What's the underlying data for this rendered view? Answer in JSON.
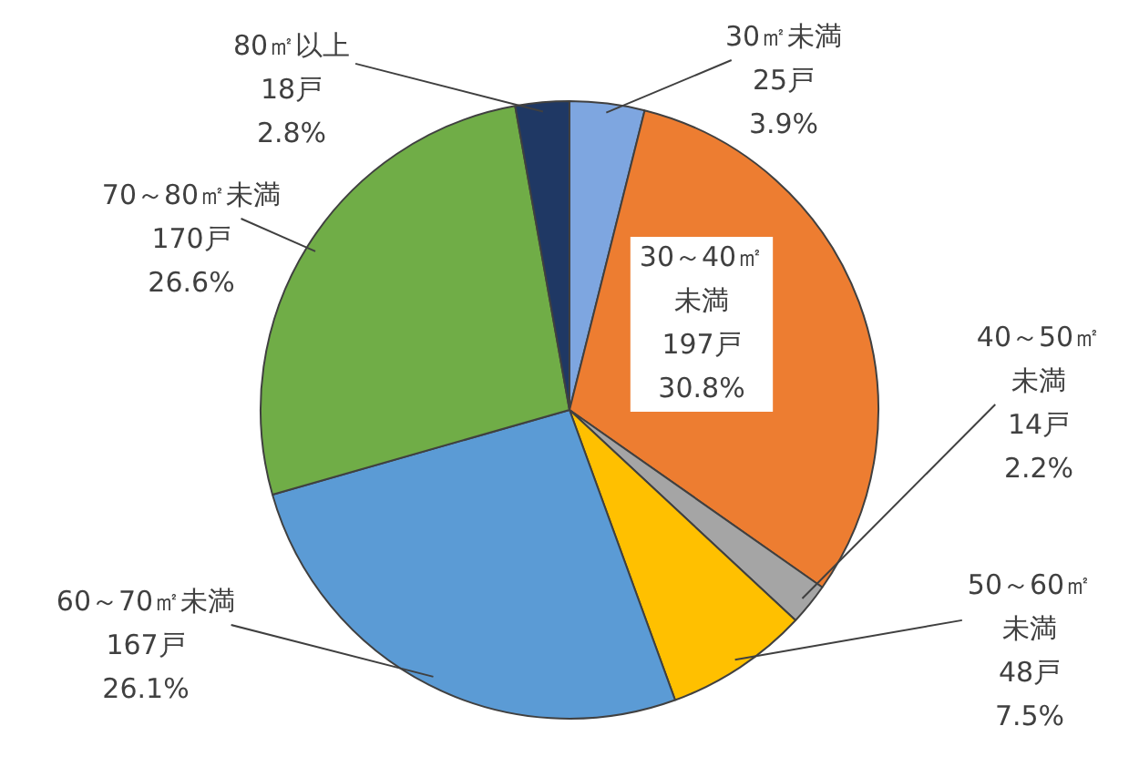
{
  "chart_data": {
    "type": "pie",
    "categories": [
      "30㎡未満",
      "30～40㎡未満",
      "40～50㎡未満",
      "50～60㎡未満",
      "60～70㎡未満",
      "70～80㎡未満",
      "80㎡以上"
    ],
    "values": [
      25,
      197,
      14,
      48,
      167,
      170,
      18
    ],
    "value_labels": [
      "25戸\n3.9%",
      "197戸\n30.8%",
      "14戸\n2.2%",
      "48戸\n7.5%",
      "167戸\n26.1%",
      "170戸\n26.6%",
      "18戸\n2.8%"
    ],
    "colors": [
      "#7ea6e0",
      "#ed7d31",
      "#a5a5a5",
      "#ffc000",
      "#5b9bd5",
      "#70ad47",
      "#1f3864"
    ],
    "legend": false
  }
}
